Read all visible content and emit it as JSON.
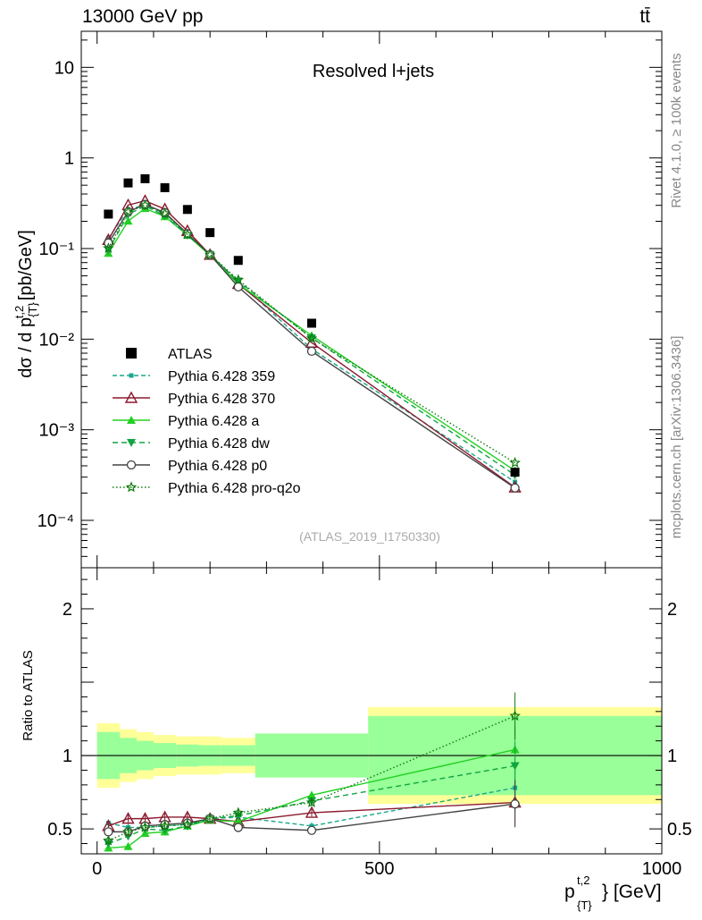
{
  "header": {
    "energy_label": "13000 GeV pp",
    "process_label": "tt̄"
  },
  "side_labels": {
    "rivet": "Rivet 4.1.0, ≥ 100k events",
    "mcplots": "mcplots.cern.ch [arXiv:1306.3436]"
  },
  "chart_data": {
    "type": "scatter",
    "title": "Resolved l+jets",
    "analysis_id": "(ATLAS_2019_I1750330)",
    "main_panel": {
      "ylabel": "dσ / d p{T}t,2 [pb/GeV]",
      "yscale": "log",
      "ylim": [
        3e-05,
        25
      ],
      "y_ticks": [
        {
          "value": 0.0001,
          "label": "10⁻⁴"
        },
        {
          "value": 0.001,
          "label": "10⁻³"
        },
        {
          "value": 0.01,
          "label": "10⁻²"
        },
        {
          "value": 0.1,
          "label": "10⁻¹"
        },
        {
          "value": 1,
          "label": "1"
        },
        {
          "value": 10,
          "label": "10"
        }
      ]
    },
    "ratio_panel": {
      "ylabel": "Ratio to ATLAS",
      "ylim": [
        0.33,
        2.28
      ],
      "y_ticks": [
        {
          "value": 0.5,
          "label": "0.5"
        },
        {
          "value": 1,
          "label": "1"
        },
        {
          "value": 2,
          "label": "2"
        }
      ]
    },
    "x_axis": {
      "label": "p{T}t,2 [GeV]",
      "xlim": [
        -28,
        1000
      ],
      "ticks": [
        {
          "value": 0,
          "label": "0"
        },
        {
          "value": 500,
          "label": "500"
        },
        {
          "value": 1000,
          "label": "1000"
        }
      ]
    },
    "bin_edges": [
      0,
      40,
      70,
      100,
      140,
      180,
      220,
      280,
      480,
      1000
    ],
    "x": [
      20,
      55,
      85,
      120,
      160,
      200,
      250,
      380,
      740
    ],
    "data_series": {
      "name": "ATLAS",
      "color": "#000000",
      "values": [
        0.24,
        0.53,
        0.59,
        0.47,
        0.27,
        0.15,
        0.074,
        0.015,
        0.00034
      ],
      "stat_band": [
        0.16,
        0.12,
        0.1,
        0.085,
        0.075,
        0.07,
        0.07,
        0.15,
        0.27
      ],
      "total_band": [
        0.22,
        0.18,
        0.16,
        0.14,
        0.13,
        0.13,
        0.12,
        0.14,
        0.33
      ]
    },
    "series": [
      {
        "name": "Pythia 6.428 359",
        "color": "#1aa78a",
        "dash": "5,3",
        "marker": "square-small",
        "ratio": [
          0.54,
          0.51,
          0.51,
          0.52,
          0.53,
          0.57,
          0.58,
          0.52,
          0.78
        ]
      },
      {
        "name": "Pythia 6.428 370",
        "color": "#8b1a2e",
        "dash": "",
        "marker": "triangle-open",
        "ratio": [
          0.52,
          0.57,
          0.57,
          0.58,
          0.58,
          0.57,
          0.55,
          0.61,
          0.68
        ]
      },
      {
        "name": "Pythia 6.428 a",
        "color": "#22d022",
        "dash": "",
        "marker": "triangle-filled",
        "ratio": [
          0.37,
          0.38,
          0.47,
          0.48,
          0.52,
          0.56,
          0.55,
          0.73,
          1.04
        ]
      },
      {
        "name": "Pythia 6.428 dw",
        "color": "#11a540",
        "dash": "6,4",
        "marker": "triangle-down",
        "ratio": [
          0.4,
          0.45,
          0.5,
          0.49,
          0.52,
          0.57,
          0.59,
          0.69,
          0.93
        ]
      },
      {
        "name": "Pythia 6.428 p0",
        "color": "#444444",
        "dash": "",
        "marker": "circle-open",
        "ratio": [
          0.48,
          0.48,
          0.52,
          0.53,
          0.54,
          0.57,
          0.51,
          0.49,
          0.67
        ]
      },
      {
        "name": "Pythia 6.428 pro-q2o",
        "color": "#0e7a0e",
        "dash": "1.5,2.5",
        "marker": "star-open",
        "ratio": [
          0.42,
          0.48,
          0.51,
          0.52,
          0.53,
          0.57,
          0.61,
          0.68,
          1.27
        ]
      }
    ],
    "legend_placement": "lower-left"
  }
}
